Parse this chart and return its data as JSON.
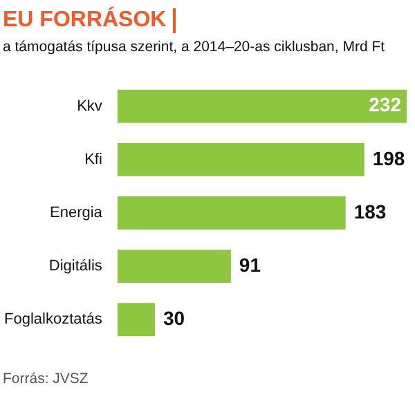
{
  "chart_data": {
    "type": "bar",
    "orientation": "horizontal",
    "title": "EU FORRÁSOK",
    "subtitle": "a támogatás típusa szerint, a 2014–20-as ciklusban, Mrd Ft",
    "categories": [
      "Kkv",
      "Kfi",
      "Energia",
      "Digitális",
      "Foglalkoztatás"
    ],
    "values": [
      232,
      198,
      183,
      91,
      30
    ],
    "color": "#8dc63f",
    "data_labels": true,
    "annotations": [
      "Forrás: JVSZ"
    ]
  }
}
